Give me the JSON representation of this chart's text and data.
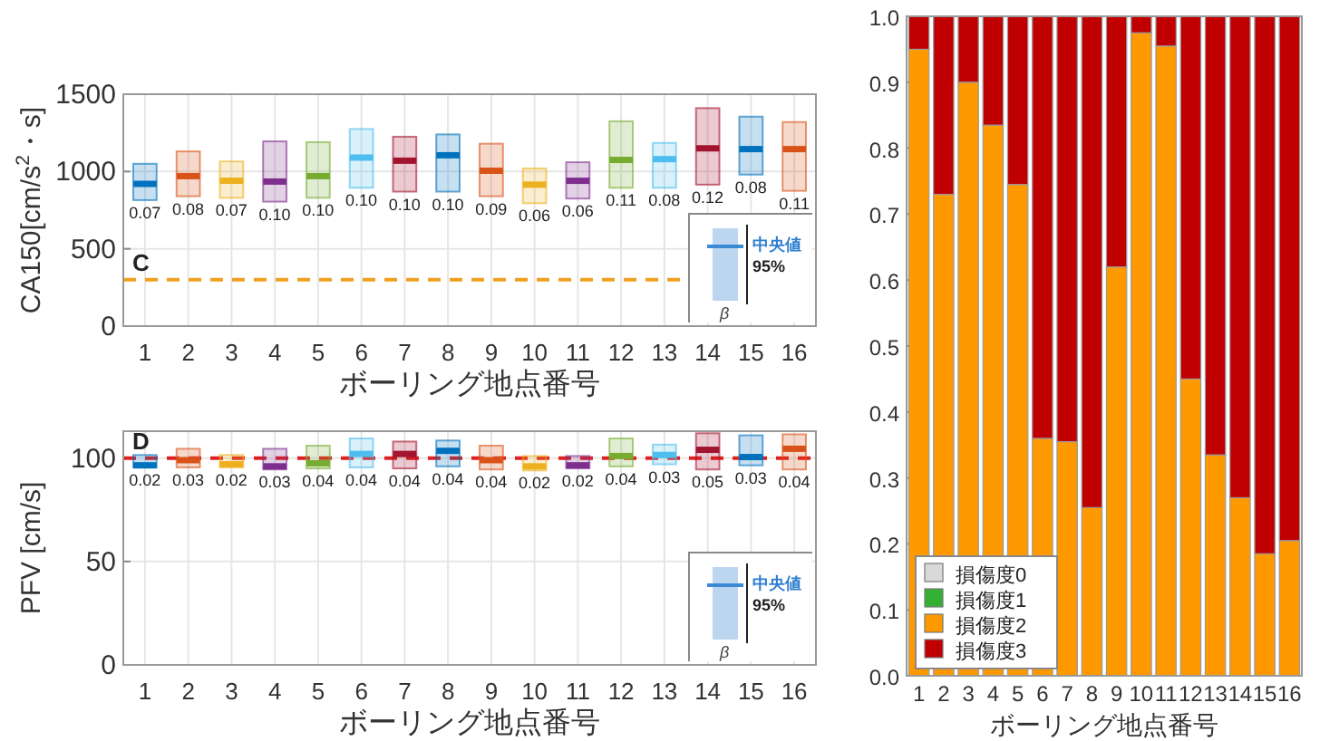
{
  "chart_data": [
    {
      "type": "box",
      "categories": [
        "1",
        "2",
        "3",
        "4",
        "5",
        "6",
        "7",
        "8",
        "9",
        "10",
        "11",
        "12",
        "13",
        "14",
        "15",
        "16"
      ],
      "boxes": [
        {
          "low": 815,
          "q1": 815,
          "median": 920,
          "q3": 1050,
          "high": 1050
        },
        {
          "low": 840,
          "q1": 840,
          "median": 970,
          "q3": 1130,
          "high": 1130
        },
        {
          "low": 830,
          "q1": 830,
          "median": 940,
          "q3": 1065,
          "high": 1065
        },
        {
          "low": 805,
          "q1": 805,
          "median": 935,
          "q3": 1195,
          "high": 1195
        },
        {
          "low": 830,
          "q1": 830,
          "median": 970,
          "q3": 1190,
          "high": 1190
        },
        {
          "low": 895,
          "q1": 895,
          "median": 1090,
          "q3": 1275,
          "high": 1275
        },
        {
          "low": 870,
          "q1": 870,
          "median": 1070,
          "q3": 1225,
          "high": 1225
        },
        {
          "low": 870,
          "q1": 870,
          "median": 1105,
          "q3": 1240,
          "high": 1240
        },
        {
          "low": 840,
          "q1": 840,
          "median": 1005,
          "q3": 1180,
          "high": 1180
        },
        {
          "low": 795,
          "q1": 795,
          "median": 915,
          "q3": 1020,
          "high": 1020
        },
        {
          "low": 825,
          "q1": 825,
          "median": 940,
          "q3": 1060,
          "high": 1060
        },
        {
          "low": 895,
          "q1": 895,
          "median": 1075,
          "q3": 1325,
          "high": 1325
        },
        {
          "low": 895,
          "q1": 895,
          "median": 1080,
          "q3": 1185,
          "high": 1185
        },
        {
          "low": 915,
          "q1": 915,
          "median": 1150,
          "q3": 1410,
          "high": 1410
        },
        {
          "low": 980,
          "q1": 980,
          "median": 1145,
          "q3": 1355,
          "high": 1355
        },
        {
          "low": 875,
          "q1": 875,
          "median": 1145,
          "q3": 1320,
          "high": 1320
        }
      ],
      "colors": [
        "#0072bd",
        "#d95319",
        "#edb120",
        "#7e2f8e",
        "#77ac30",
        "#4dbeee",
        "#a2142f",
        "#0072bd",
        "#d95319",
        "#edb120",
        "#7e2f8e",
        "#77ac30",
        "#4dbeee",
        "#a2142f",
        "#0072bd",
        "#d95319"
      ],
      "value_labels": [
        "0.07",
        "0.08",
        "0.07",
        "0.10",
        "0.10",
        "0.10",
        "0.10",
        "0.10",
        "0.09",
        "0.06",
        "0.06",
        "0.11",
        "0.08",
        "0.12",
        "0.08",
        "0.11"
      ],
      "xlabel": "ボーリング地点番号",
      "ylabel": "CA150[cm/s$^{2}$・s]",
      "ylim": [
        0,
        1500
      ],
      "yticks": [
        0,
        500,
        1000,
        1500
      ],
      "grid": true,
      "ref_lines": [
        {
          "axis": "y",
          "value": 300,
          "label": "C",
          "color": "#f0a020",
          "line_style": "dashed"
        }
      ],
      "annotations": [
        "中央値",
        "95%",
        "β"
      ]
    },
    {
      "type": "box",
      "categories": [
        "1",
        "2",
        "3",
        "4",
        "5",
        "6",
        "7",
        "8",
        "9",
        "10",
        "11",
        "12",
        "13",
        "14",
        "15",
        "16"
      ],
      "boxes": [
        {
          "low": 95.5,
          "q1": 95.5,
          "median": 96.5,
          "q3": 101.5,
          "high": 101.5
        },
        {
          "low": 95.5,
          "q1": 95.5,
          "median": 99,
          "q3": 104.5,
          "high": 104.5
        },
        {
          "low": 95.5,
          "q1": 95.5,
          "median": 97,
          "q3": 101.5,
          "high": 101.5
        },
        {
          "low": 94.5,
          "q1": 94.5,
          "median": 96,
          "q3": 104.5,
          "high": 104.5
        },
        {
          "low": 95,
          "q1": 95,
          "median": 97.5,
          "q3": 106,
          "high": 106
        },
        {
          "low": 95.5,
          "q1": 95.5,
          "median": 102,
          "q3": 109.5,
          "high": 109.5
        },
        {
          "low": 95,
          "q1": 95,
          "median": 102,
          "q3": 108,
          "high": 108
        },
        {
          "low": 96,
          "q1": 96,
          "median": 103.5,
          "q3": 108.5,
          "high": 108.5
        },
        {
          "low": 94.5,
          "q1": 94.5,
          "median": 99,
          "q3": 106,
          "high": 106
        },
        {
          "low": 94,
          "q1": 94,
          "median": 96,
          "q3": 101,
          "high": 101
        },
        {
          "low": 95,
          "q1": 95,
          "median": 96.5,
          "q3": 101,
          "high": 101
        },
        {
          "low": 96,
          "q1": 96,
          "median": 101,
          "q3": 109.5,
          "high": 109.5
        },
        {
          "low": 97,
          "q1": 97,
          "median": 101.5,
          "q3": 106.5,
          "high": 106.5
        },
        {
          "low": 94.5,
          "q1": 94.5,
          "median": 104,
          "q3": 112,
          "high": 112
        },
        {
          "low": 96.5,
          "q1": 96.5,
          "median": 100.5,
          "q3": 111,
          "high": 111
        },
        {
          "low": 94.5,
          "q1": 94.5,
          "median": 104.5,
          "q3": 111.5,
          "high": 111.5
        }
      ],
      "colors": [
        "#0072bd",
        "#d95319",
        "#edb120",
        "#7e2f8e",
        "#77ac30",
        "#4dbeee",
        "#a2142f",
        "#0072bd",
        "#d95319",
        "#edb120",
        "#7e2f8e",
        "#77ac30",
        "#4dbeee",
        "#a2142f",
        "#0072bd",
        "#d95319"
      ],
      "value_labels": [
        "0.02",
        "0.03",
        "0.02",
        "0.03",
        "0.04",
        "0.04",
        "0.04",
        "0.04",
        "0.04",
        "0.02",
        "0.02",
        "0.04",
        "0.03",
        "0.05",
        "0.03",
        "0.04"
      ],
      "xlabel": "ボーリング地点番号",
      "ylabel": "PFV [cm/s]",
      "ylim": [
        0,
        113
      ],
      "yticks": [
        0,
        50,
        100
      ],
      "grid": true,
      "ref_lines": [
        {
          "axis": "y",
          "value": 100,
          "label": "D",
          "color": "#e02020",
          "line_style": "dashed"
        }
      ],
      "annotations": [
        "中央値",
        "95%",
        "β"
      ]
    },
    {
      "type": "bar",
      "stacked": true,
      "categories": [
        "1",
        "2",
        "3",
        "4",
        "5",
        "6",
        "7",
        "8",
        "9",
        "10",
        "11",
        "12",
        "13",
        "14",
        "15",
        "16"
      ],
      "series": [
        {
          "name": "損傷度0",
          "color": "#d9d9d9",
          "values": [
            0,
            0,
            0,
            0,
            0,
            0,
            0,
            0,
            0,
            0,
            0,
            0,
            0,
            0,
            0,
            0
          ]
        },
        {
          "name": "損傷度1",
          "color": "#33b033",
          "values": [
            0,
            0,
            0,
            0,
            0,
            0,
            0,
            0,
            0,
            0,
            0,
            0,
            0,
            0,
            0,
            0
          ]
        },
        {
          "name": "損傷度2",
          "color": "#ff9900",
          "values": [
            0.95,
            0.73,
            0.9,
            0.835,
            0.745,
            0.36,
            0.355,
            0.255,
            0.62,
            0.975,
            0.955,
            0.45,
            0.335,
            0.27,
            0.185,
            0.205
          ]
        },
        {
          "name": "損傷度3",
          "color": "#c00000",
          "values": [
            0.05,
            0.27,
            0.1,
            0.165,
            0.255,
            0.64,
            0.645,
            0.745,
            0.38,
            0.025,
            0.045,
            0.55,
            0.665,
            0.73,
            0.815,
            0.795
          ]
        }
      ],
      "xlabel": "ボーリング地点番号",
      "ylim": [
        0,
        1
      ],
      "yticks": [
        {
          "value": 0,
          "label": "0.0"
        },
        {
          "value": 0.1,
          "label": "0.1"
        },
        {
          "value": 0.2,
          "label": "0.2"
        },
        {
          "value": 0.3,
          "label": "0.3"
        },
        {
          "value": 0.4,
          "label": "0.4"
        },
        {
          "value": 0.5,
          "label": "0.5"
        },
        {
          "value": 0.6,
          "label": "0.6"
        },
        {
          "value": 0.7,
          "label": "0.7"
        },
        {
          "value": 0.8,
          "label": "0.8"
        },
        {
          "value": 0.9,
          "label": "0.9"
        },
        {
          "value": 1,
          "label": "1.0"
        }
      ],
      "legend": "bottom left"
    }
  ]
}
